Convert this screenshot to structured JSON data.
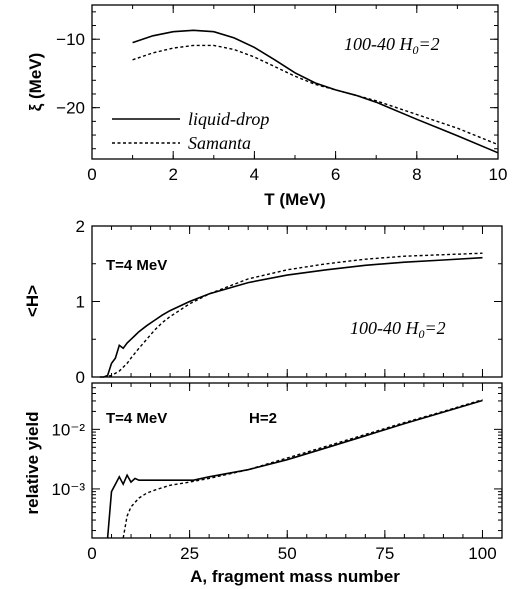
{
  "chart_data": [
    {
      "type": "line",
      "xlabel": "T (MeV)",
      "ylabel": "ξ (MeV)",
      "xlim": [
        0,
        10
      ],
      "ylim": [
        -27.5,
        -5
      ],
      "xticks": [
        0,
        2,
        4,
        6,
        8,
        10
      ],
      "xtick_labels": [
        "0",
        "2",
        "4",
        "6",
        "8",
        "10"
      ],
      "yticks": [
        -10,
        -20
      ],
      "ytick_labels": [
        "−10",
        "−20"
      ],
      "annotation": "100-40 H₀=2",
      "legend": [
        "liquid-drop",
        "Samanta"
      ],
      "series": [
        {
          "name": "liquid-drop",
          "style": "solid",
          "x": [
            1,
            1.5,
            2,
            2.5,
            3,
            3.5,
            4,
            4.5,
            5,
            5.5,
            6,
            6.5,
            7,
            8,
            9,
            10
          ],
          "y": [
            -10.5,
            -9.5,
            -8.9,
            -8.7,
            -8.9,
            -9.8,
            -11.2,
            -13.0,
            -14.9,
            -16.4,
            -17.4,
            -18.2,
            -19.2,
            -21.7,
            -24.1,
            -26.6
          ]
        },
        {
          "name": "Samanta",
          "style": "dashed",
          "x": [
            1,
            1.5,
            2,
            2.5,
            3,
            3.5,
            4,
            4.5,
            5,
            5.5,
            6,
            6.5,
            7,
            8,
            9,
            10
          ],
          "y": [
            -13.0,
            -12.0,
            -11.3,
            -10.9,
            -10.9,
            -11.5,
            -12.6,
            -14.0,
            -15.4,
            -16.6,
            -17.4,
            -18.2,
            -19.0,
            -21.0,
            -23.0,
            -25.4
          ]
        }
      ]
    },
    {
      "type": "line",
      "ylabel": "<H>",
      "xlim": [
        0,
        105
      ],
      "ylim": [
        0,
        2
      ],
      "yticks": [
        0,
        1,
        2
      ],
      "ytick_labels": [
        "0",
        "1",
        "2"
      ],
      "annotation_left": "T=4 MeV",
      "annotation_right": "100-40 H₀=2",
      "series": [
        {
          "name": "liquid-drop",
          "style": "solid",
          "x": [
            2,
            3,
            4,
            5,
            6,
            7,
            8,
            9,
            10,
            11,
            12,
            14,
            16,
            18,
            20,
            25,
            30,
            40,
            50,
            60,
            70,
            80,
            90,
            100
          ],
          "y": [
            0,
            0,
            0.02,
            0.18,
            0.25,
            0.42,
            0.38,
            0.45,
            0.5,
            0.55,
            0.6,
            0.68,
            0.75,
            0.82,
            0.88,
            1.0,
            1.1,
            1.25,
            1.35,
            1.42,
            1.48,
            1.52,
            1.55,
            1.58
          ]
        },
        {
          "name": "Samanta",
          "style": "dashed",
          "x": [
            3,
            5,
            7,
            9,
            10,
            12,
            14,
            16,
            18,
            20,
            25,
            30,
            40,
            50,
            60,
            70,
            80,
            90,
            100
          ],
          "y": [
            0,
            0.02,
            0.08,
            0.18,
            0.25,
            0.38,
            0.5,
            0.62,
            0.72,
            0.8,
            0.97,
            1.1,
            1.3,
            1.42,
            1.5,
            1.56,
            1.6,
            1.62,
            1.64
          ]
        }
      ]
    },
    {
      "type": "line",
      "xlabel": "A, fragment mass number",
      "ylabel": "relative yield",
      "xlim": [
        0,
        105
      ],
      "log_y": true,
      "ylim": [
        0.00015,
        0.06
      ],
      "xticks": [
        0,
        25,
        50,
        75,
        100
      ],
      "xtick_labels": [
        "0",
        "25",
        "50",
        "75",
        "100"
      ],
      "yticks": [
        0.001,
        0.01
      ],
      "ytick_labels": [
        "10⁻³",
        "10⁻²"
      ],
      "annotation_left": "T=4 MeV",
      "annotation_right": "H=2",
      "series": [
        {
          "name": "liquid-drop",
          "style": "solid",
          "x": [
            4,
            5,
            6,
            7,
            8,
            9,
            10,
            11,
            12,
            15,
            20,
            26,
            30,
            40,
            50,
            60,
            70,
            80,
            90,
            100
          ],
          "y": [
            0.00015,
            0.0009,
            0.0012,
            0.0016,
            0.0012,
            0.0017,
            0.0013,
            0.0015,
            0.0014,
            0.0014,
            0.0014,
            0.0014,
            0.0016,
            0.0021,
            0.0031,
            0.0049,
            0.0078,
            0.0125,
            0.0195,
            0.0305
          ]
        },
        {
          "name": "Samanta",
          "style": "dashed",
          "x": [
            8,
            9,
            10,
            12,
            14,
            16,
            18,
            20,
            25,
            30,
            40,
            50,
            60,
            70,
            80,
            90,
            100
          ],
          "y": [
            0.00015,
            0.00035,
            0.0005,
            0.0007,
            0.00085,
            0.00095,
            0.00105,
            0.00115,
            0.0013,
            0.0015,
            0.0021,
            0.0033,
            0.0052,
            0.0082,
            0.013,
            0.02,
            0.0315
          ]
        }
      ]
    }
  ]
}
